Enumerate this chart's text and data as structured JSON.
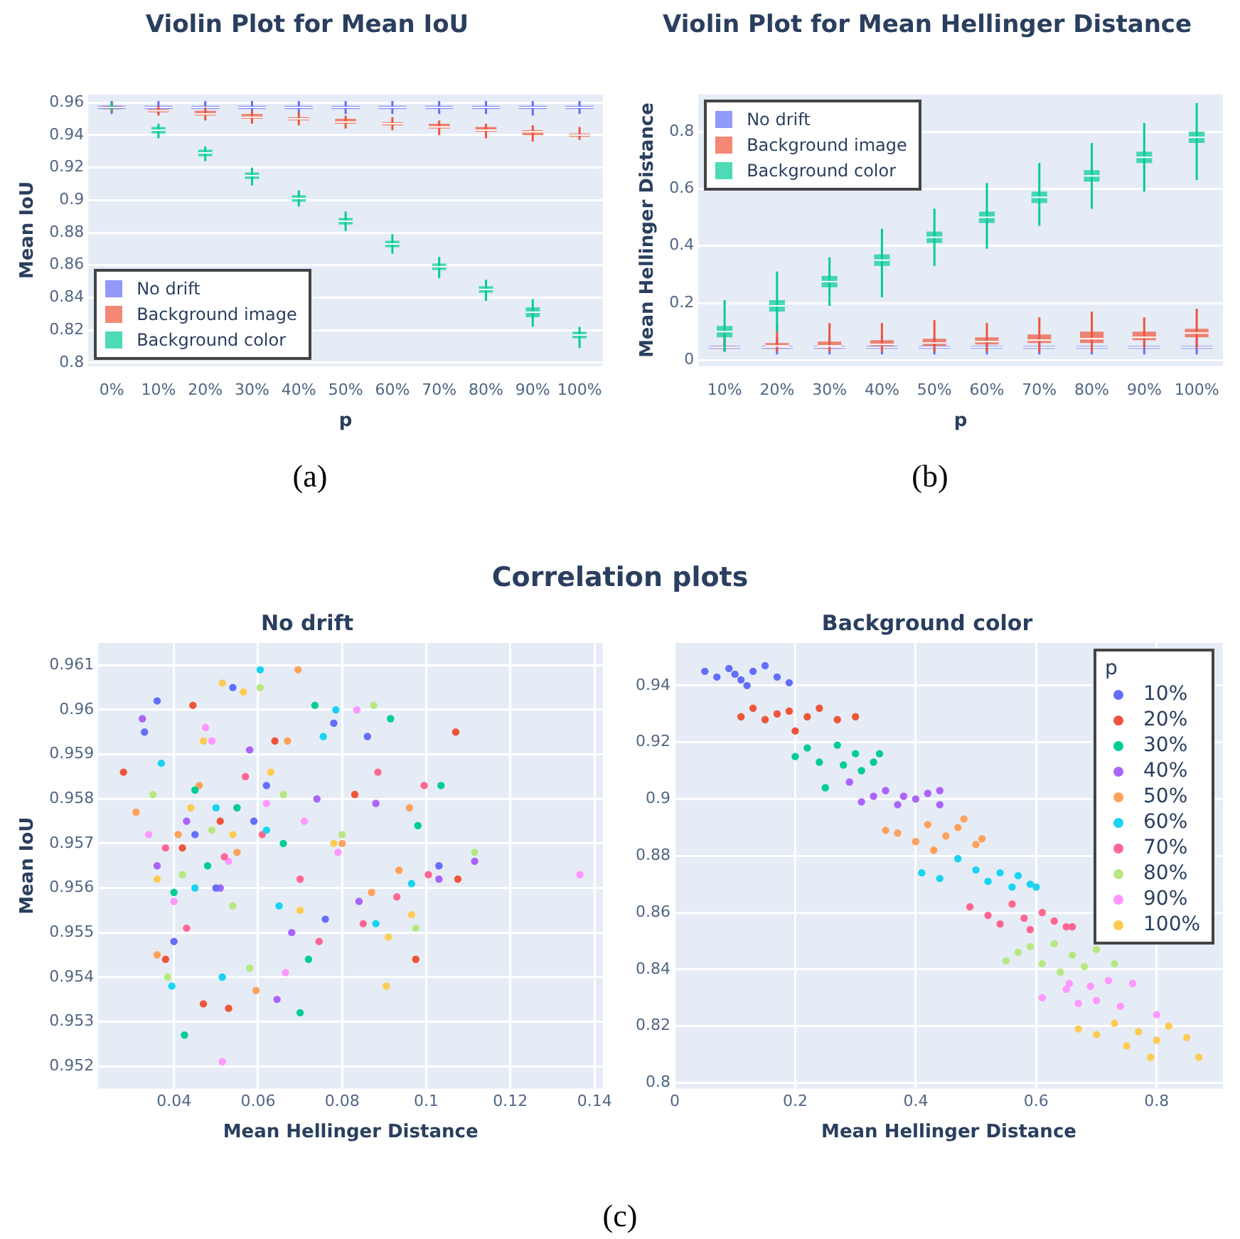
{
  "chart_data": [
    {
      "type": "box",
      "title": "Violin Plot for Mean IoU",
      "xlabel": "p",
      "ylabel": "Mean IoU",
      "annotations": [
        "(a)"
      ],
      "categories": [
        "0%",
        "10%",
        "20%",
        "30%",
        "40%",
        "50%",
        "60%",
        "70%",
        "80%",
        "90%",
        "100%"
      ],
      "ylim": [
        0.798,
        0.965
      ],
      "yticks": [
        0.8,
        0.82,
        0.84,
        0.86,
        0.88,
        0.9,
        0.92,
        0.94,
        0.96
      ],
      "grid": "y",
      "legend": "bottom left",
      "series": [
        {
          "name": "No drift",
          "color": "#636efa",
          "boxes": [
            {
              "low": 0.953,
              "q1": 0.956,
              "median": 0.957,
              "q3": 0.958,
              "high": 0.961
            },
            {
              "low": 0.953,
              "q1": 0.956,
              "median": 0.957,
              "q3": 0.958,
              "high": 0.961
            },
            {
              "low": 0.953,
              "q1": 0.956,
              "median": 0.957,
              "q3": 0.958,
              "high": 0.961
            },
            {
              "low": 0.953,
              "q1": 0.956,
              "median": 0.957,
              "q3": 0.958,
              "high": 0.961
            },
            {
              "low": 0.953,
              "q1": 0.956,
              "median": 0.957,
              "q3": 0.958,
              "high": 0.961
            },
            {
              "low": 0.953,
              "q1": 0.956,
              "median": 0.957,
              "q3": 0.958,
              "high": 0.961
            },
            {
              "low": 0.953,
              "q1": 0.956,
              "median": 0.957,
              "q3": 0.958,
              "high": 0.961
            },
            {
              "low": 0.953,
              "q1": 0.956,
              "median": 0.957,
              "q3": 0.958,
              "high": 0.961
            },
            {
              "low": 0.953,
              "q1": 0.956,
              "median": 0.957,
              "q3": 0.958,
              "high": 0.961
            },
            {
              "low": 0.952,
              "q1": 0.956,
              "median": 0.957,
              "q3": 0.958,
              "high": 0.961
            },
            {
              "low": 0.953,
              "q1": 0.956,
              "median": 0.957,
              "q3": 0.958,
              "high": 0.961
            }
          ]
        },
        {
          "name": "Background image",
          "color": "#ef553b",
          "boxes": [
            {
              "low": 0.954,
              "q1": 0.956,
              "median": 0.957,
              "q3": 0.958,
              "high": 0.96
            },
            {
              "low": 0.952,
              "q1": 0.954,
              "median": 0.955,
              "q3": 0.956,
              "high": 0.958
            },
            {
              "low": 0.949,
              "q1": 0.952,
              "median": 0.953,
              "q3": 0.955,
              "high": 0.957
            },
            {
              "low": 0.947,
              "q1": 0.95,
              "median": 0.951,
              "q3": 0.953,
              "high": 0.955
            },
            {
              "low": 0.946,
              "q1": 0.949,
              "median": 0.95,
              "q3": 0.951,
              "high": 0.954
            },
            {
              "low": 0.944,
              "q1": 0.947,
              "median": 0.948,
              "q3": 0.95,
              "high": 0.952
            },
            {
              "low": 0.943,
              "q1": 0.946,
              "median": 0.947,
              "q3": 0.948,
              "high": 0.951
            },
            {
              "low": 0.94,
              "q1": 0.944,
              "median": 0.945,
              "q3": 0.947,
              "high": 0.949
            },
            {
              "low": 0.938,
              "q1": 0.942,
              "median": 0.943,
              "q3": 0.945,
              "high": 0.947
            },
            {
              "low": 0.936,
              "q1": 0.94,
              "median": 0.942,
              "q3": 0.943,
              "high": 0.946
            },
            {
              "low": 0.937,
              "q1": 0.939,
              "median": 0.94,
              "q3": 0.941,
              "high": 0.945
            }
          ]
        },
        {
          "name": "Background color",
          "color": "#00cc96",
          "boxes": [
            {
              "low": 0.955,
              "q1": 0.956,
              "median": 0.957,
              "q3": 0.958,
              "high": 0.96
            },
            {
              "low": 0.938,
              "q1": 0.941,
              "median": 0.943,
              "q3": 0.945,
              "high": 0.947
            },
            {
              "low": 0.924,
              "q1": 0.927,
              "median": 0.929,
              "q3": 0.931,
              "high": 0.933
            },
            {
              "low": 0.909,
              "q1": 0.913,
              "median": 0.915,
              "q3": 0.917,
              "high": 0.92
            },
            {
              "low": 0.896,
              "q1": 0.899,
              "median": 0.901,
              "q3": 0.903,
              "high": 0.906
            },
            {
              "low": 0.881,
              "q1": 0.885,
              "median": 0.887,
              "q3": 0.889,
              "high": 0.893
            },
            {
              "low": 0.867,
              "q1": 0.871,
              "median": 0.873,
              "q3": 0.875,
              "high": 0.879
            },
            {
              "low": 0.852,
              "q1": 0.857,
              "median": 0.859,
              "q3": 0.861,
              "high": 0.865
            },
            {
              "low": 0.838,
              "q1": 0.843,
              "median": 0.845,
              "q3": 0.847,
              "high": 0.851
            },
            {
              "low": 0.822,
              "q1": 0.828,
              "median": 0.831,
              "q3": 0.834,
              "high": 0.839
            },
            {
              "low": 0.809,
              "q1": 0.815,
              "median": 0.817,
              "q3": 0.819,
              "high": 0.822
            }
          ]
        }
      ]
    },
    {
      "type": "box",
      "title": "Violin Plot for Mean Hellinger Distance",
      "xlabel": "p",
      "ylabel": "Mean Hellinger Distance",
      "annotations": [
        "(b)"
      ],
      "categories": [
        "10%",
        "20%",
        "30%",
        "40%",
        "50%",
        "60%",
        "70%",
        "80%",
        "90%",
        "100%"
      ],
      "ylim": [
        -0.02,
        0.93
      ],
      "yticks": [
        0,
        0.2,
        0.4,
        0.6,
        0.8
      ],
      "grid": "y",
      "legend": "top left",
      "series": [
        {
          "name": "No drift",
          "color": "#636efa",
          "boxes": [
            {
              "low": 0.03,
              "q1": 0.04,
              "median": 0.045,
              "q3": 0.05,
              "high": 0.07
            },
            {
              "low": 0.02,
              "q1": 0.04,
              "median": 0.045,
              "q3": 0.05,
              "high": 0.08
            },
            {
              "low": 0.02,
              "q1": 0.04,
              "median": 0.045,
              "q3": 0.05,
              "high": 0.08
            },
            {
              "low": 0.02,
              "q1": 0.04,
              "median": 0.045,
              "q3": 0.05,
              "high": 0.08
            },
            {
              "low": 0.02,
              "q1": 0.04,
              "median": 0.045,
              "q3": 0.05,
              "high": 0.08
            },
            {
              "low": 0.02,
              "q1": 0.04,
              "median": 0.045,
              "q3": 0.05,
              "high": 0.08
            },
            {
              "low": 0.02,
              "q1": 0.04,
              "median": 0.045,
              "q3": 0.05,
              "high": 0.08
            },
            {
              "low": 0.02,
              "q1": 0.04,
              "median": 0.045,
              "q3": 0.05,
              "high": 0.08
            },
            {
              "low": 0.02,
              "q1": 0.04,
              "median": 0.045,
              "q3": 0.05,
              "high": 0.08
            },
            {
              "low": 0.02,
              "q1": 0.04,
              "median": 0.045,
              "q3": 0.05,
              "high": 0.08
            }
          ]
        },
        {
          "name": "Background image",
          "color": "#ef553b",
          "boxes": [
            {
              "low": 0.03,
              "q1": 0.04,
              "median": 0.045,
              "q3": 0.05,
              "high": 0.09
            },
            {
              "low": 0.03,
              "q1": 0.04,
              "median": 0.05,
              "q3": 0.06,
              "high": 0.12
            },
            {
              "low": 0.03,
              "q1": 0.04,
              "median": 0.05,
              "q3": 0.065,
              "high": 0.13
            },
            {
              "low": 0.03,
              "q1": 0.045,
              "median": 0.055,
              "q3": 0.07,
              "high": 0.13
            },
            {
              "low": 0.03,
              "q1": 0.05,
              "median": 0.06,
              "q3": 0.075,
              "high": 0.14
            },
            {
              "low": 0.03,
              "q1": 0.055,
              "median": 0.065,
              "q3": 0.08,
              "high": 0.13
            },
            {
              "low": 0.03,
              "q1": 0.06,
              "median": 0.07,
              "q3": 0.09,
              "high": 0.15
            },
            {
              "low": 0.03,
              "q1": 0.06,
              "median": 0.075,
              "q3": 0.1,
              "high": 0.17
            },
            {
              "low": 0.04,
              "q1": 0.07,
              "median": 0.08,
              "q3": 0.1,
              "high": 0.15
            },
            {
              "low": 0.04,
              "q1": 0.08,
              "median": 0.095,
              "q3": 0.11,
              "high": 0.18
            }
          ]
        },
        {
          "name": "Background color",
          "color": "#00cc96",
          "boxes": [
            {
              "low": 0.03,
              "q1": 0.08,
              "median": 0.1,
              "q3": 0.12,
              "high": 0.21
            },
            {
              "low": 0.1,
              "q1": 0.17,
              "median": 0.19,
              "q3": 0.21,
              "high": 0.31
            },
            {
              "low": 0.19,
              "q1": 0.255,
              "median": 0.275,
              "q3": 0.295,
              "high": 0.36
            },
            {
              "low": 0.22,
              "q1": 0.33,
              "median": 0.35,
              "q3": 0.37,
              "high": 0.46
            },
            {
              "low": 0.33,
              "q1": 0.41,
              "median": 0.43,
              "q3": 0.45,
              "high": 0.53
            },
            {
              "low": 0.39,
              "q1": 0.48,
              "median": 0.5,
              "q3": 0.52,
              "high": 0.62
            },
            {
              "low": 0.47,
              "q1": 0.55,
              "median": 0.57,
              "q3": 0.59,
              "high": 0.69
            },
            {
              "low": 0.53,
              "q1": 0.625,
              "median": 0.645,
              "q3": 0.665,
              "high": 0.76
            },
            {
              "low": 0.59,
              "q1": 0.69,
              "median": 0.71,
              "q3": 0.73,
              "high": 0.83
            },
            {
              "low": 0.63,
              "q1": 0.76,
              "median": 0.78,
              "q3": 0.8,
              "high": 0.9
            }
          ]
        }
      ]
    },
    {
      "type": "scatter",
      "title": "No drift",
      "xlabel": "Mean Hellinger Distance",
      "ylabel": "Mean IoU",
      "annotations": [
        "Correlation plots",
        "(c)"
      ],
      "xlim": [
        0.022,
        0.142
      ],
      "xticks": [
        0.04,
        0.06,
        0.08,
        0.1,
        0.12,
        0.14
      ],
      "ylim": [
        0.9515,
        0.9615
      ],
      "yticks": [
        0.952,
        0.953,
        0.954,
        0.955,
        0.956,
        0.957,
        0.958,
        0.959,
        0.96,
        0.961
      ],
      "grid": true,
      "marker": "circle",
      "series": [
        {
          "color": "#636efa",
          "x": [
            0.036,
            0.033,
            0.054,
            0.078,
            0.086,
            0.045,
            0.05,
            0.059,
            0.076,
            0.103,
            0.04,
            0.062
          ],
          "values": [
            0.9602,
            0.9595,
            0.9605,
            0.9597,
            0.9594,
            0.9572,
            0.956,
            0.9575,
            0.9553,
            0.9565,
            0.9548,
            0.9583
          ]
        },
        {
          "color": "#ef553b",
          "x": [
            0.107,
            0.028,
            0.0975,
            0.047,
            0.053,
            0.0445,
            0.083,
            0.042,
            0.1075,
            0.064,
            0.038,
            0.051
          ],
          "values": [
            0.9595,
            0.9586,
            0.9544,
            0.9534,
            0.9533,
            0.9601,
            0.9581,
            0.9569,
            0.9562,
            0.9593,
            0.9544,
            0.9575
          ]
        },
        {
          "color": "#00cc96",
          "x": [
            0.0425,
            0.0735,
            0.0915,
            0.1035,
            0.07,
            0.072,
            0.048,
            0.055,
            0.098,
            0.04,
            0.066,
            0.045
          ],
          "values": [
            0.9527,
            0.9601,
            0.9598,
            0.9583,
            0.9532,
            0.9544,
            0.9565,
            0.9578,
            0.9574,
            0.9559,
            0.957,
            0.9582
          ]
        },
        {
          "color": "#ab63fa",
          "x": [
            0.0325,
            0.0645,
            0.1115,
            0.103,
            0.088,
            0.051,
            0.043,
            0.074,
            0.058,
            0.036,
            0.084,
            0.068
          ],
          "values": [
            0.9598,
            0.9535,
            0.9566,
            0.9562,
            0.9579,
            0.956,
            0.9575,
            0.958,
            0.9591,
            0.9565,
            0.9557,
            0.955
          ]
        },
        {
          "color": "#ffa15a",
          "x": [
            0.0695,
            0.031,
            0.0595,
            0.096,
            0.0935,
            0.046,
            0.055,
            0.036,
            0.067,
            0.087,
            0.041,
            0.08
          ],
          "values": [
            0.9609,
            0.9577,
            0.9537,
            0.9578,
            0.9564,
            0.9583,
            0.9568,
            0.9545,
            0.9593,
            0.9559,
            0.9572,
            0.957
          ]
        },
        {
          "color": "#19d3f3",
          "x": [
            0.0605,
            0.0395,
            0.0515,
            0.0965,
            0.0785,
            0.0755,
            0.05,
            0.045,
            0.062,
            0.088,
            0.037,
            0.065
          ],
          "values": [
            0.9609,
            0.9538,
            0.954,
            0.9561,
            0.96,
            0.9594,
            0.9578,
            0.956,
            0.9573,
            0.9552,
            0.9588,
            0.9556
          ]
        },
        {
          "color": "#ff6692",
          "x": [
            0.1005,
            0.0995,
            0.085,
            0.0885,
            0.0745,
            0.052,
            0.043,
            0.057,
            0.061,
            0.038,
            0.07,
            0.093
          ],
          "values": [
            0.9563,
            0.9583,
            0.9552,
            0.9586,
            0.9548,
            0.9567,
            0.9551,
            0.9585,
            0.9572,
            0.9569,
            0.9562,
            0.9558
          ]
        },
        {
          "color": "#b6e880",
          "x": [
            0.0605,
            0.0875,
            0.1115,
            0.0975,
            0.0385,
            0.058,
            0.049,
            0.042,
            0.066,
            0.08,
            0.054,
            0.035
          ],
          "values": [
            0.9605,
            0.9601,
            0.9568,
            0.9551,
            0.954,
            0.9542,
            0.9573,
            0.9563,
            0.9581,
            0.9572,
            0.9556,
            0.9581
          ]
        },
        {
          "color": "#ff97ff",
          "x": [
            0.1365,
            0.0515,
            0.0835,
            0.0665,
            0.0475,
            0.071,
            0.049,
            0.053,
            0.079,
            0.04,
            0.062,
            0.034
          ],
          "values": [
            0.9563,
            0.9521,
            0.96,
            0.9541,
            0.9596,
            0.9575,
            0.9593,
            0.9566,
            0.9568,
            0.9557,
            0.9579,
            0.9572
          ]
        },
        {
          "color": "#fecb52",
          "x": [
            0.0515,
            0.0565,
            0.0905,
            0.0965,
            0.091,
            0.047,
            0.054,
            0.044,
            0.078,
            0.036,
            0.063,
            0.07
          ],
          "values": [
            0.9606,
            0.9604,
            0.9538,
            0.9554,
            0.9549,
            0.9593,
            0.9572,
            0.9578,
            0.957,
            0.9562,
            0.9586,
            0.9555
          ]
        }
      ]
    },
    {
      "type": "scatter",
      "title": "Background color",
      "xlabel": "Mean Hellinger Distance",
      "legend_title": "p",
      "xlim": [
        0,
        0.91
      ],
      "xticks": [
        0,
        0.2,
        0.4,
        0.6,
        0.8
      ],
      "ylim": [
        0.798,
        0.955
      ],
      "yticks": [
        0.8,
        0.82,
        0.84,
        0.86,
        0.88,
        0.9,
        0.92,
        0.94
      ],
      "grid": true,
      "legend": "top right",
      "marker": "circle",
      "series": [
        {
          "name": "10%",
          "color": "#636efa",
          "x": [
            0.05,
            0.07,
            0.09,
            0.1,
            0.11,
            0.12,
            0.13,
            0.15,
            0.17,
            0.19
          ],
          "values": [
            0.945,
            0.943,
            0.946,
            0.944,
            0.942,
            0.94,
            0.945,
            0.947,
            0.943,
            0.941
          ]
        },
        {
          "name": "20%",
          "color": "#ef553b",
          "x": [
            0.11,
            0.13,
            0.15,
            0.17,
            0.19,
            0.2,
            0.22,
            0.24,
            0.27,
            0.3
          ],
          "values": [
            0.929,
            0.932,
            0.928,
            0.93,
            0.931,
            0.924,
            0.929,
            0.932,
            0.928,
            0.929
          ]
        },
        {
          "name": "30%",
          "color": "#00cc96",
          "x": [
            0.2,
            0.22,
            0.24,
            0.25,
            0.27,
            0.28,
            0.3,
            0.31,
            0.33,
            0.34
          ],
          "values": [
            0.915,
            0.918,
            0.913,
            0.904,
            0.919,
            0.912,
            0.916,
            0.91,
            0.913,
            0.916
          ]
        },
        {
          "name": "40%",
          "color": "#ab63fa",
          "x": [
            0.29,
            0.31,
            0.33,
            0.35,
            0.37,
            0.38,
            0.4,
            0.42,
            0.44,
            0.44
          ],
          "values": [
            0.906,
            0.899,
            0.901,
            0.903,
            0.898,
            0.901,
            0.9,
            0.902,
            0.898,
            0.903
          ]
        },
        {
          "name": "50%",
          "color": "#ffa15a",
          "x": [
            0.35,
            0.37,
            0.4,
            0.42,
            0.43,
            0.45,
            0.47,
            0.48,
            0.5,
            0.51
          ],
          "values": [
            0.889,
            0.888,
            0.885,
            0.891,
            0.882,
            0.887,
            0.89,
            0.893,
            0.884,
            0.886
          ]
        },
        {
          "name": "60%",
          "color": "#19d3f3",
          "x": [
            0.41,
            0.44,
            0.47,
            0.5,
            0.52,
            0.54,
            0.56,
            0.57,
            0.59,
            0.6
          ],
          "values": [
            0.874,
            0.872,
            0.879,
            0.875,
            0.871,
            0.874,
            0.869,
            0.873,
            0.87,
            0.869
          ]
        },
        {
          "name": "70%",
          "color": "#ff6692",
          "x": [
            0.49,
            0.52,
            0.54,
            0.56,
            0.58,
            0.59,
            0.61,
            0.63,
            0.65,
            0.66
          ],
          "values": [
            0.862,
            0.859,
            0.856,
            0.863,
            0.858,
            0.854,
            0.86,
            0.857,
            0.855,
            0.855
          ]
        },
        {
          "name": "80%",
          "color": "#b6e880",
          "x": [
            0.55,
            0.57,
            0.59,
            0.61,
            0.63,
            0.64,
            0.66,
            0.68,
            0.7,
            0.73
          ],
          "values": [
            0.843,
            0.846,
            0.848,
            0.842,
            0.849,
            0.839,
            0.845,
            0.841,
            0.847,
            0.842
          ]
        },
        {
          "name": "90%",
          "color": "#ff97ff",
          "x": [
            0.61,
            0.655,
            0.65,
            0.67,
            0.69,
            0.7,
            0.72,
            0.74,
            0.76,
            0.8
          ],
          "values": [
            0.83,
            0.835,
            0.833,
            0.828,
            0.834,
            0.829,
            0.836,
            0.827,
            0.835,
            0.824
          ]
        },
        {
          "name": "100%",
          "color": "#fecb52",
          "x": [
            0.67,
            0.7,
            0.73,
            0.75,
            0.77,
            0.79,
            0.8,
            0.82,
            0.85,
            0.87
          ],
          "values": [
            0.819,
            0.817,
            0.821,
            0.813,
            0.818,
            0.809,
            0.815,
            0.82,
            0.816,
            0.809
          ]
        }
      ]
    }
  ]
}
